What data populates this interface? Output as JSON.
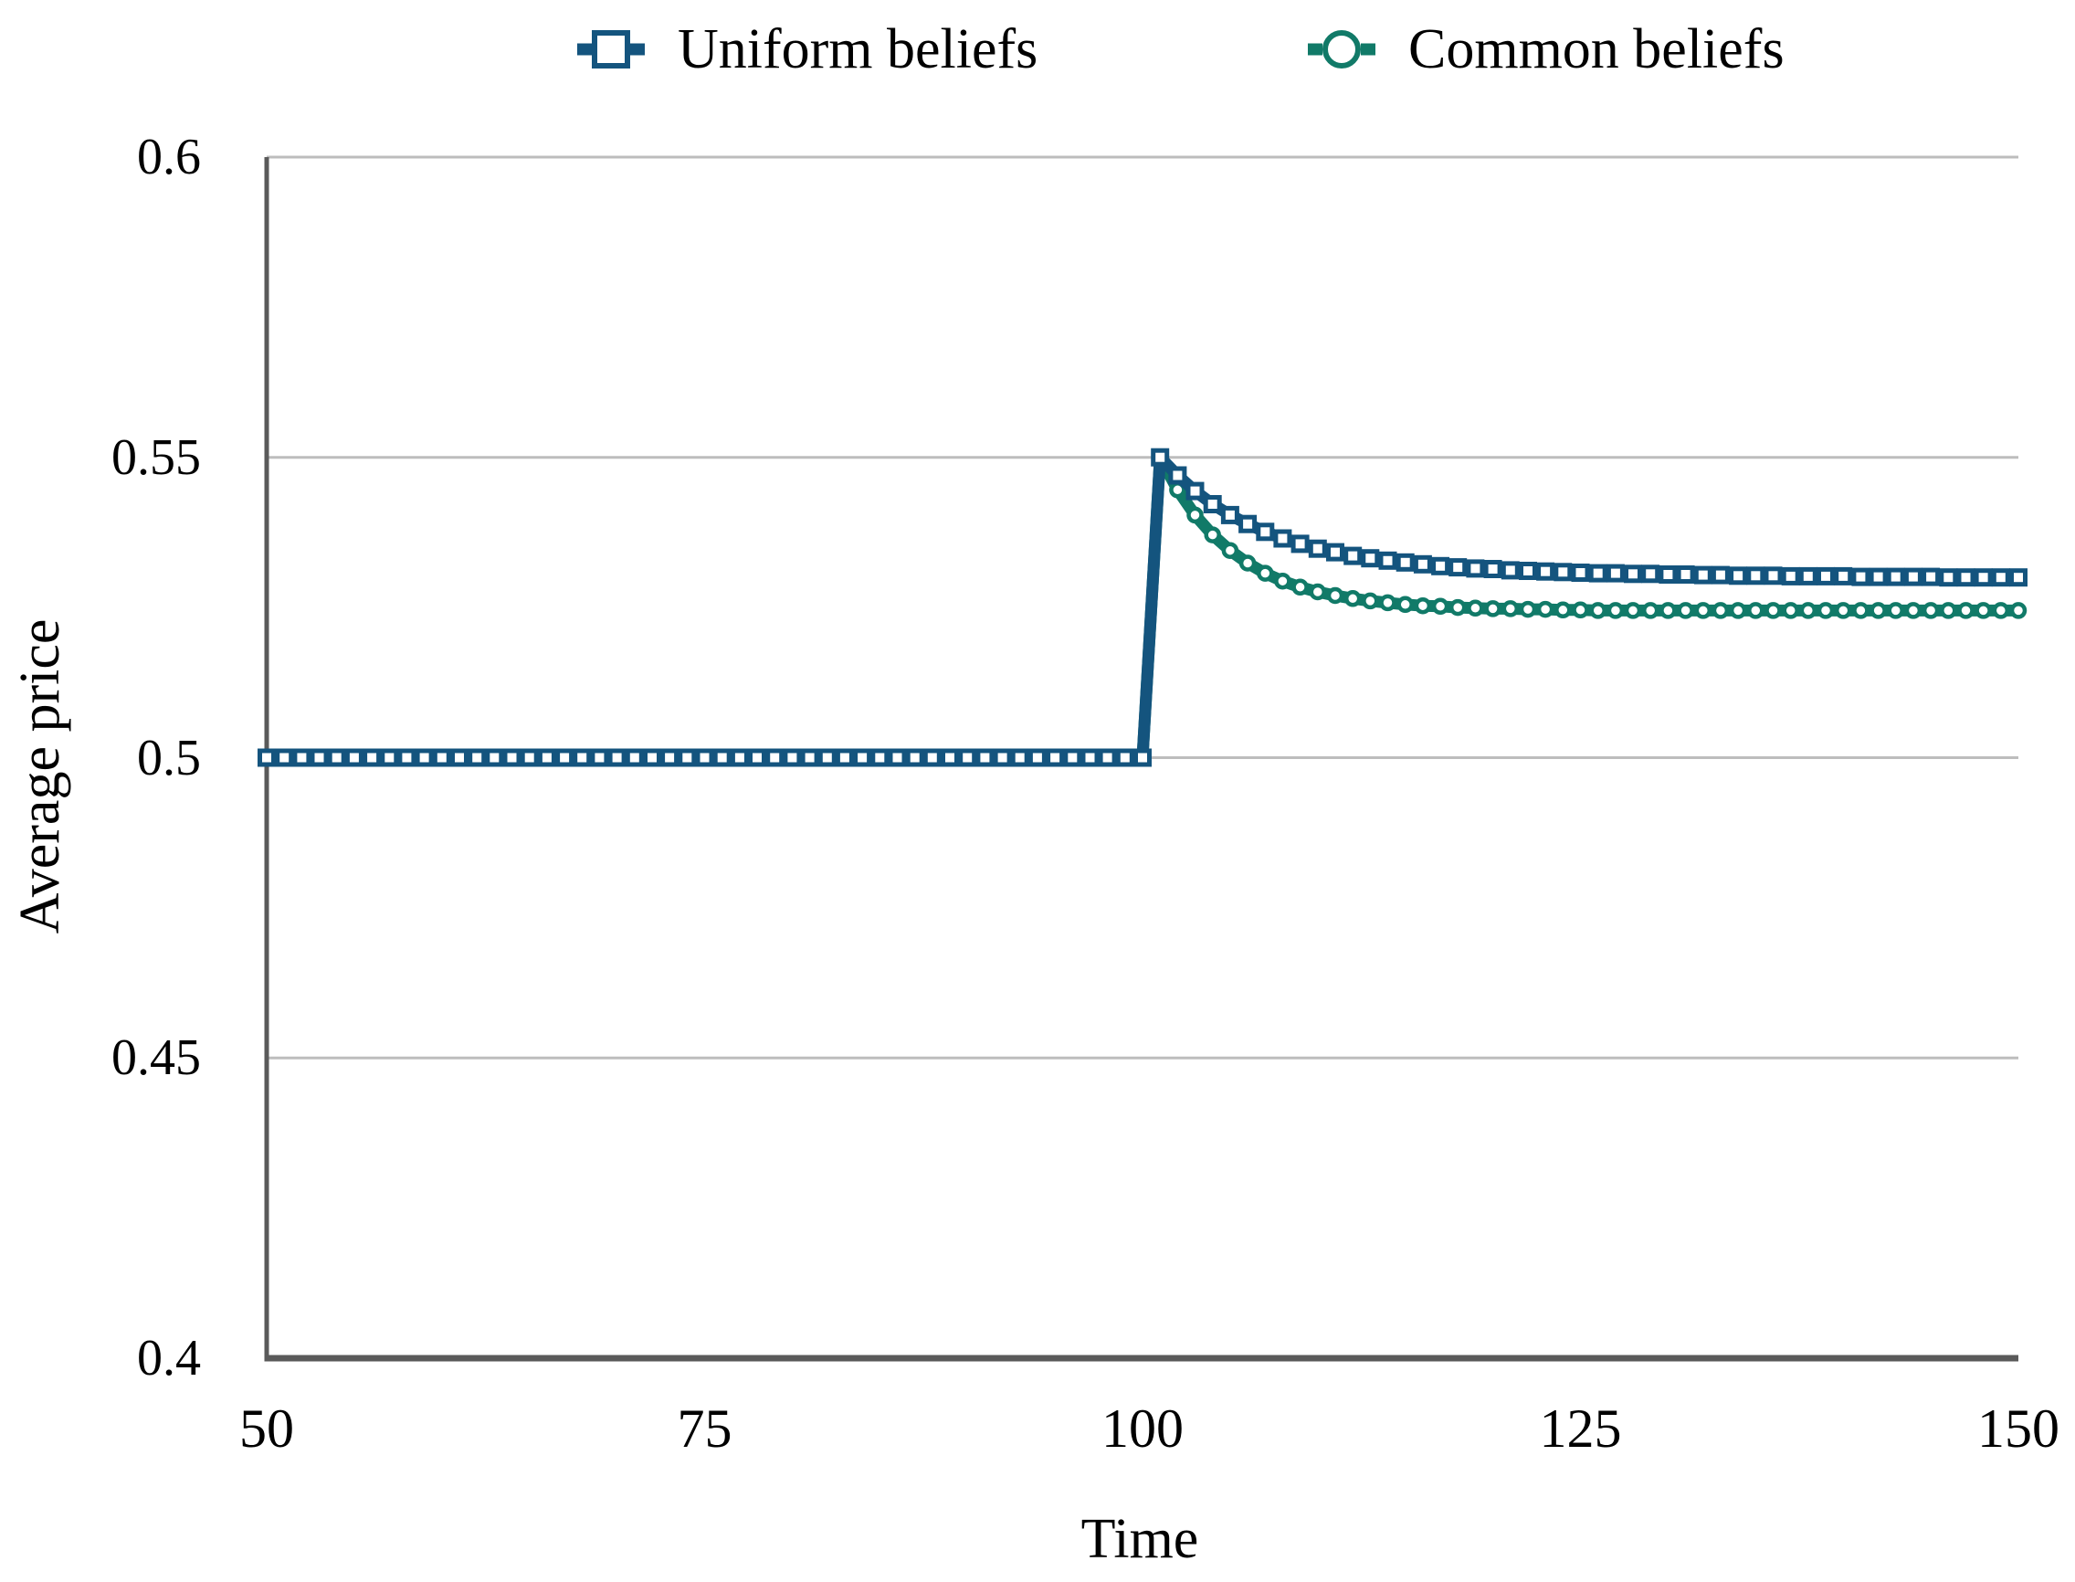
{
  "page": {
    "background": "#ffffff"
  },
  "colors": {
    "uniform": "#14547e",
    "common": "#117a68",
    "axis": "#5a5a5a",
    "grid": "#bdbdbd",
    "marker_fill": "#ffffff",
    "text": "#000000"
  },
  "legend": {
    "items": [
      {
        "label": "Uniform beliefs",
        "marker": "square",
        "color_key": "uniform"
      },
      {
        "label": "Common beliefs",
        "marker": "circle",
        "color_key": "common"
      }
    ]
  },
  "chart_data": {
    "type": "line",
    "title": "",
    "xlabel": "Time",
    "ylabel": "Average price",
    "xlim": [
      50,
      150
    ],
    "ylim": [
      0.4,
      0.6
    ],
    "x_ticks": [
      50,
      75,
      100,
      125,
      150
    ],
    "x_tick_labels": [
      "50",
      "75",
      "100",
      "125",
      "150"
    ],
    "y_ticks": [
      0.4,
      0.45,
      0.5,
      0.55,
      0.6
    ],
    "y_tick_labels": [
      "0.4",
      "0.45",
      "0.5",
      "0.55",
      "0.6"
    ],
    "grid": "horizontal",
    "legend_position": "top",
    "x_start": 50,
    "x_step": 1,
    "series": [
      {
        "name": "Uniform beliefs",
        "marker": "square",
        "color_key": "uniform",
        "values": [
          0.5,
          0.5,
          0.5,
          0.5,
          0.5,
          0.5,
          0.5,
          0.5,
          0.5,
          0.5,
          0.5,
          0.5,
          0.5,
          0.5,
          0.5,
          0.5,
          0.5,
          0.5,
          0.5,
          0.5,
          0.5,
          0.5,
          0.5,
          0.5,
          0.5,
          0.5,
          0.5,
          0.5,
          0.5,
          0.5,
          0.5,
          0.5,
          0.5,
          0.5,
          0.5,
          0.5,
          0.5,
          0.5,
          0.5,
          0.5,
          0.5,
          0.5,
          0.5,
          0.5,
          0.5,
          0.5,
          0.5,
          0.5,
          0.5,
          0.5,
          0.5,
          0.55,
          0.547,
          0.5444,
          0.5422,
          0.5404,
          0.5389,
          0.5376,
          0.5365,
          0.5356,
          0.5348,
          0.5342,
          0.5336,
          0.5332,
          0.5328,
          0.5325,
          0.5322,
          0.5319,
          0.5317,
          0.5315,
          0.5314,
          0.5312,
          0.5311,
          0.531,
          0.5309,
          0.5308,
          0.5307,
          0.5307,
          0.5306,
          0.5306,
          0.5305,
          0.5305,
          0.5304,
          0.5304,
          0.5303,
          0.5303,
          0.5303,
          0.5302,
          0.5302,
          0.5302,
          0.5302,
          0.5301,
          0.5301,
          0.5301,
          0.5301,
          0.5301,
          0.53,
          0.53,
          0.53,
          0.53,
          0.53
        ]
      },
      {
        "name": "Common beliefs",
        "marker": "circle",
        "color_key": "common",
        "values": [
          0.5,
          0.5,
          0.5,
          0.5,
          0.5,
          0.5,
          0.5,
          0.5,
          0.5,
          0.5,
          0.5,
          0.5,
          0.5,
          0.5,
          0.5,
          0.5,
          0.5,
          0.5,
          0.5,
          0.5,
          0.5,
          0.5,
          0.5,
          0.5,
          0.5,
          0.5,
          0.5,
          0.5,
          0.5,
          0.5,
          0.5,
          0.5,
          0.5,
          0.5,
          0.5,
          0.5,
          0.5,
          0.5,
          0.5,
          0.5,
          0.5,
          0.5,
          0.5,
          0.5,
          0.5,
          0.5,
          0.5,
          0.5,
          0.5,
          0.5,
          0.5,
          0.55,
          0.5446,
          0.5404,
          0.5371,
          0.5345,
          0.5324,
          0.5307,
          0.5294,
          0.5284,
          0.5276,
          0.527,
          0.5265,
          0.5261,
          0.5258,
          0.5255,
          0.5253,
          0.5252,
          0.525,
          0.5249,
          0.5248,
          0.5248,
          0.5247,
          0.5247,
          0.5246,
          0.5246,
          0.5245,
          0.5245,
          0.5245,
          0.5245,
          0.5245,
          0.5245,
          0.5245,
          0.5245,
          0.5245,
          0.5245,
          0.5245,
          0.5245,
          0.5245,
          0.5245,
          0.5245,
          0.5245,
          0.5245,
          0.5245,
          0.5245,
          0.5245,
          0.5245,
          0.5245,
          0.5245,
          0.5245,
          0.5245
        ]
      }
    ]
  }
}
